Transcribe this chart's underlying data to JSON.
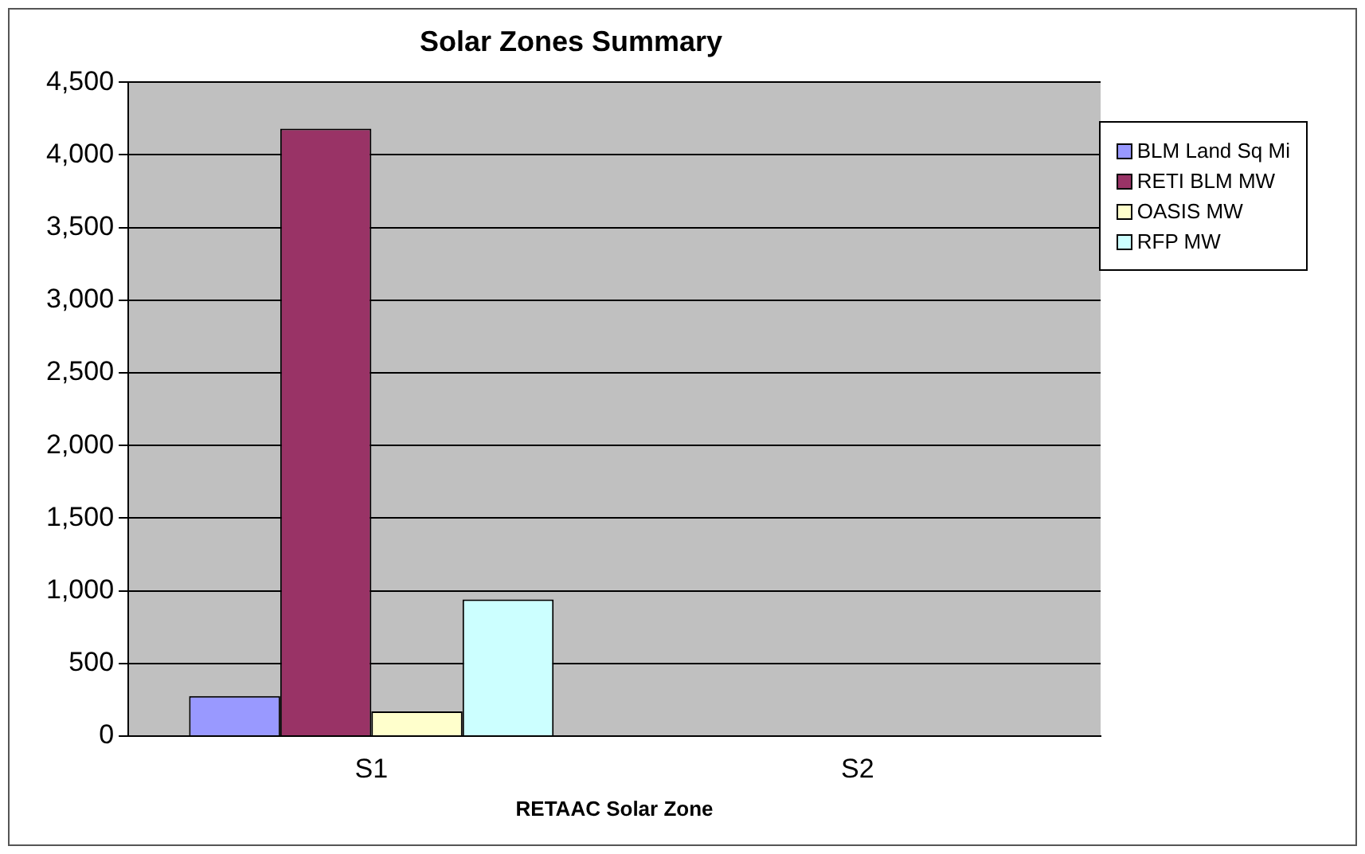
{
  "chart_data": {
    "type": "bar",
    "title": "Solar Zones Summary",
    "xlabel": "RETAAC Solar Zone",
    "categories": [
      "S1",
      "S2"
    ],
    "series": [
      {
        "name": "BLM Land Sq Mi",
        "color": "#9999ff",
        "values": [
          275,
          0
        ]
      },
      {
        "name": "RETI BLM MW",
        "color": "#993366",
        "values": [
          4180,
          0
        ]
      },
      {
        "name": "OASIS MW",
        "color": "#ffffcc",
        "values": [
          170,
          0
        ]
      },
      {
        "name": "RFP MW",
        "color": "#ccffff",
        "values": [
          940,
          0
        ]
      }
    ],
    "ylim": [
      0,
      4500
    ],
    "yticks": [
      0,
      500,
      {
        "value": 1000,
        "label": "1,000"
      },
      {
        "value": 1500,
        "label": "1,500"
      },
      {
        "value": 2000,
        "label": "2,000"
      },
      {
        "value": 2500,
        "label": "2,500"
      },
      {
        "value": 3000,
        "label": "3,000"
      },
      {
        "value": 3500,
        "label": "3,500"
      },
      {
        "value": 4000,
        "label": "4,000"
      },
      {
        "value": 4500,
        "label": "4,500"
      }
    ],
    "grid": "y",
    "legend": "top right"
  }
}
